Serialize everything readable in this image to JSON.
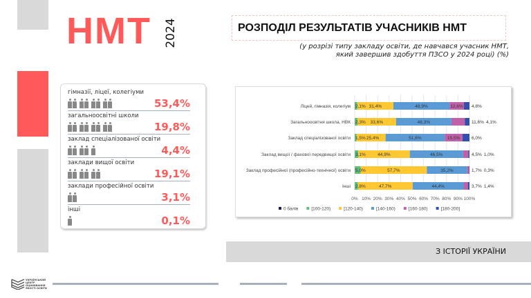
{
  "header": {
    "title": "НМТ",
    "year": "2024"
  },
  "slide": {
    "title": "РОЗПОДІЛ РЕЗУЛЬТАТІВ УЧАСНИКІВ НМТ",
    "subtitle_line1": "(у розрізі типу закладу освіти, де навчався учасник НМТ,",
    "subtitle_line2": "який завершив здобуття ПЗСО  у 2024 році) (%)"
  },
  "shares": [
    {
      "label": "гімназії, ліцеї, колегіуми",
      "value": "53,4%",
      "icons": 8
    },
    {
      "label": "загальноосвітні школи",
      "value": "19,8%",
      "icons": 8
    },
    {
      "label": "заклад спеціалізованої освіти",
      "value": "4,4%",
      "icons": 5
    },
    {
      "label": "заклади вищої освіти",
      "value": "19,1%",
      "icons": 6
    },
    {
      "label": "заклади професійної освіти",
      "value": "3,1%",
      "icons": 2
    },
    {
      "label": "інші",
      "value": "0,1%",
      "icons": 1
    }
  ],
  "footer": {
    "section": "З ІСТОРІЇ УКРАЇНИ",
    "logo_text": "УКРАЇНСЬКИЙ ЦЕНТР ОЦІНЮВАННЯ ЯКОСТІ ОСВІТИ"
  },
  "chart_data": {
    "type": "bar",
    "orientation": "horizontal",
    "stacked": true,
    "categories": [
      "Ліцей,  гімназія, колегіум",
      "Загальноосвітня школа, НВК",
      "Заклад спеціалізованої освіти",
      "Заклад вищої / фахової передвищої освіти",
      "Заклад професійної (професійно-технічної) освіти",
      "Інші"
    ],
    "series": [
      {
        "name": "0 балів",
        "color": "#1f1f4f",
        "values": [
          0.2,
          0.1,
          0,
          0,
          0.1,
          0
        ]
      },
      {
        "name": "[100-120)",
        "color": "#5fbf7f",
        "values": [
          2.1,
          2.3,
          1.5,
          3.1,
          5.0,
          2.8
        ]
      },
      {
        "name": "[120-140)",
        "color": "#ffc832",
        "values": [
          31.4,
          33.6,
          25.4,
          44.9,
          57.7,
          47.7
        ]
      },
      {
        "name": "[140-160)",
        "color": "#5b9bd5",
        "values": [
          48.9,
          48.3,
          51.6,
          46.5,
          35.2,
          44.4
        ]
      },
      {
        "name": "[160-180)",
        "color": "#c060a8",
        "values": [
          12.6,
          11.6,
          15.5,
          4.5,
          1.7,
          3.7
        ]
      },
      {
        "name": "[180-200]",
        "color": "#3050b0",
        "values": [
          4.8,
          4.1,
          6.0,
          1.0,
          0.3,
          1.4
        ]
      }
    ],
    "labels": [
      [
        "",
        "2,1%",
        "31,4%",
        "48,9%",
        "12,6%",
        "4,8%"
      ],
      [
        "",
        "2,3%",
        "33,6%",
        "48,3%",
        "11,6%",
        "4,1%"
      ],
      [
        "",
        "1,5%",
        "25,4%",
        "51,6%",
        "15,5%",
        "6,0%"
      ],
      [
        "",
        "3,1%",
        "44,9%",
        "46,5%",
        "4,5%",
        "1,0%"
      ],
      [
        "",
        "5,0%",
        "57,7%",
        "35,2%",
        "1,7%",
        "0,3%"
      ],
      [
        "",
        "2,8%",
        "47,7%",
        "44,4%",
        "3,7%",
        "1,4%"
      ]
    ],
    "xticks": [
      "0%",
      "10%",
      "20%",
      "30%",
      "40%",
      "50%",
      "60%",
      "70%",
      "80%",
      "90%",
      "100%"
    ],
    "xlim": [
      0,
      100
    ],
    "legend": "bottom"
  }
}
